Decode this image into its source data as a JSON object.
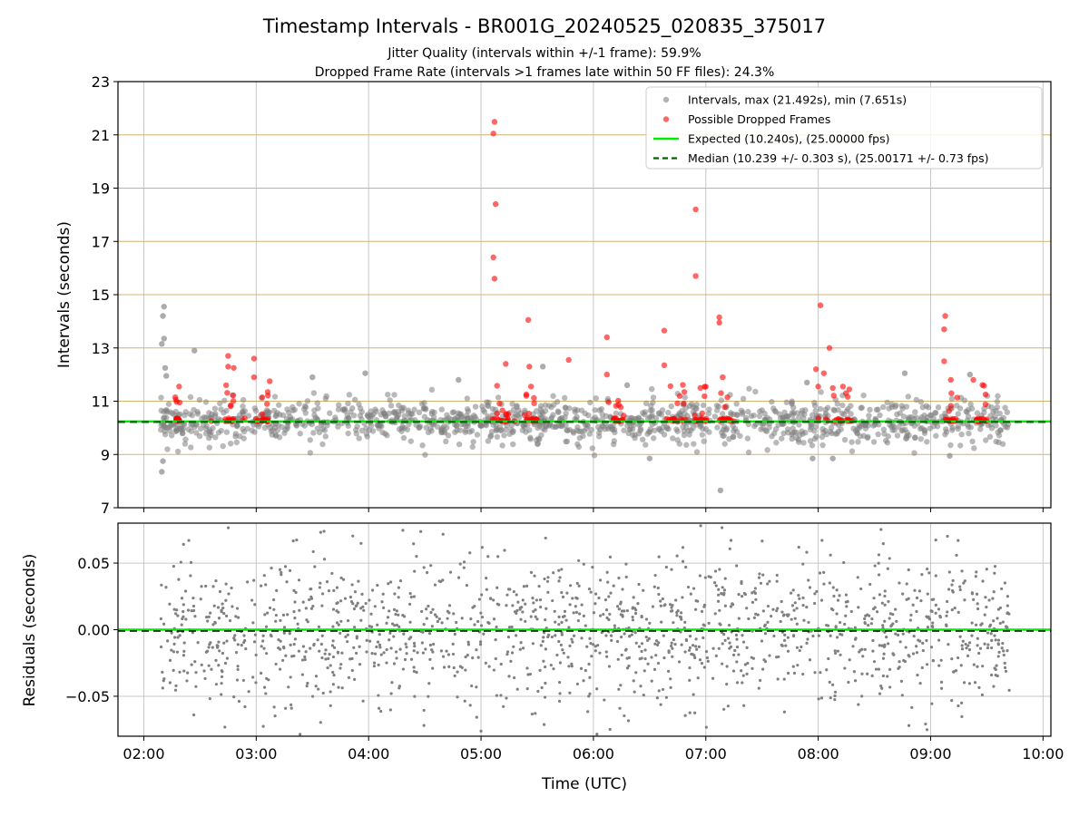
{
  "title": "Timestamp Intervals - BR001G_20240525_020835_375017",
  "subtitle1": "Jitter Quality (intervals within +/-1 frame): 59.9%",
  "subtitle2": "Dropped Frame Rate (intervals >1 frames late within 50 FF files): 24.3%",
  "colors": {
    "intervals": "#808080",
    "dropped": "#ff0000",
    "expected": "#00ee00",
    "median": "#006400",
    "hgrid": "#d2b46e",
    "vgrid": "#c8c8c8"
  },
  "chart_data": [
    {
      "type": "scatter",
      "xlabel": "Time (UTC)",
      "ylabel": "Intervals (seconds)",
      "ylim": [
        7,
        23
      ],
      "yticks": [
        "7",
        "9",
        "11",
        "13",
        "15",
        "17",
        "19",
        "21",
        "23"
      ],
      "xlim_hours": [
        1.77,
        10.07
      ],
      "xtick_hours": [
        2,
        3,
        4,
        5,
        6,
        7,
        8,
        9,
        10
      ],
      "xticks": [
        "02:00",
        "03:00",
        "04:00",
        "05:00",
        "06:00",
        "07:00",
        "08:00",
        "09:00",
        "10:00"
      ],
      "grid": true,
      "legend_position": "top-right",
      "legend": [
        "Intervals, max (21.492s), min (7.651s)",
        "Possible Dropped Frames",
        "Expected (10.240s), (25.00000 fps)",
        "Median (10.239 +/- 0.303 s), (25.00171 +/- 0.73 fps)"
      ],
      "expected": 10.24,
      "median": 10.239,
      "median_std": 0.303,
      "max_interval": 21.492,
      "min_interval": 7.651,
      "time_range_hours": [
        2.15,
        9.7
      ],
      "series": [
        {
          "name": "Intervals, max (21.492s), min (7.651s)",
          "points": [
            [
              2.18,
              14.55
            ],
            [
              2.17,
              14.2
            ],
            [
              2.18,
              13.35
            ],
            [
              2.16,
              13.15
            ],
            [
              2.19,
              12.25
            ],
            [
              2.2,
              11.95
            ],
            [
              2.45,
              12.9
            ],
            [
              2.17,
              8.75
            ],
            [
              2.16,
              8.35
            ],
            [
              7.13,
              7.65
            ],
            [
              3.97,
              12.05
            ],
            [
              5.55,
              12.3
            ],
            [
              8.77,
              12.05
            ],
            [
              9.35,
              12.0
            ],
            [
              6.5,
              8.85
            ],
            [
              7.95,
              8.85
            ],
            [
              8.13,
              8.85
            ],
            [
              9.17,
              8.95
            ],
            [
              3.5,
              11.9
            ],
            [
              4.8,
              11.8
            ],
            [
              6.3,
              11.6
            ],
            [
              7.9,
              11.7
            ]
          ]
        },
        {
          "name": "Possible Dropped Frames",
          "points": [
            [
              5.12,
              21.49
            ],
            [
              5.11,
              21.05
            ],
            [
              5.13,
              18.4
            ],
            [
              5.11,
              16.4
            ],
            [
              5.12,
              15.6
            ],
            [
              5.22,
              12.4
            ],
            [
              5.42,
              14.05
            ],
            [
              5.43,
              12.3
            ],
            [
              5.78,
              12.55
            ],
            [
              6.12,
              13.4
            ],
            [
              6.12,
              12.0
            ],
            [
              6.63,
              13.65
            ],
            [
              6.63,
              12.35
            ],
            [
              6.91,
              18.2
            ],
            [
              6.91,
              15.7
            ],
            [
              7.12,
              14.15
            ],
            [
              7.12,
              13.95
            ],
            [
              7.15,
              11.9
            ],
            [
              8.02,
              14.6
            ],
            [
              8.1,
              13.0
            ],
            [
              9.13,
              14.2
            ],
            [
              9.12,
              13.7
            ],
            [
              9.12,
              12.5
            ],
            [
              2.75,
              12.7
            ],
            [
              2.75,
              12.3
            ],
            [
              2.8,
              12.25
            ],
            [
              2.98,
              12.6
            ],
            [
              2.98,
              11.9
            ],
            [
              3.12,
              11.75
            ],
            [
              2.28,
              11.15
            ],
            [
              7.98,
              12.2
            ],
            [
              8.05,
              12.05
            ],
            [
              8.0,
              11.55
            ],
            [
              8.22,
              11.55
            ],
            [
              9.18,
              11.8
            ],
            [
              9.38,
              11.8
            ],
            [
              2.6,
              10.25
            ],
            [
              3.05,
              10.25
            ],
            [
              5.3,
              10.25
            ],
            [
              5.5,
              10.25
            ],
            [
              6.2,
              10.25
            ],
            [
              6.75,
              10.25
            ],
            [
              7.25,
              10.25
            ],
            [
              8.2,
              10.25
            ],
            [
              9.45,
              10.25
            ]
          ]
        },
        {
          "name": "Expected (10.240s), (25.00000 fps)",
          "values": [
            10.24
          ]
        },
        {
          "name": "Median (10.239 +/- 0.303 s), (25.00171 +/- 0.73 fps)",
          "values": [
            10.239
          ]
        }
      ]
    },
    {
      "type": "scatter",
      "xlabel": "Time (UTC)",
      "ylabel": "Residuals (seconds)",
      "ylim": [
        -0.08,
        0.08
      ],
      "yticks": [
        "−0.05",
        "0.00",
        "0.05"
      ],
      "ytick_values": [
        -0.05,
        0.0,
        0.05
      ],
      "grid": true,
      "expected": 0.0,
      "median": -0.001,
      "time_range_hours": [
        2.15,
        9.7
      ],
      "residual_spread": 0.08
    }
  ]
}
